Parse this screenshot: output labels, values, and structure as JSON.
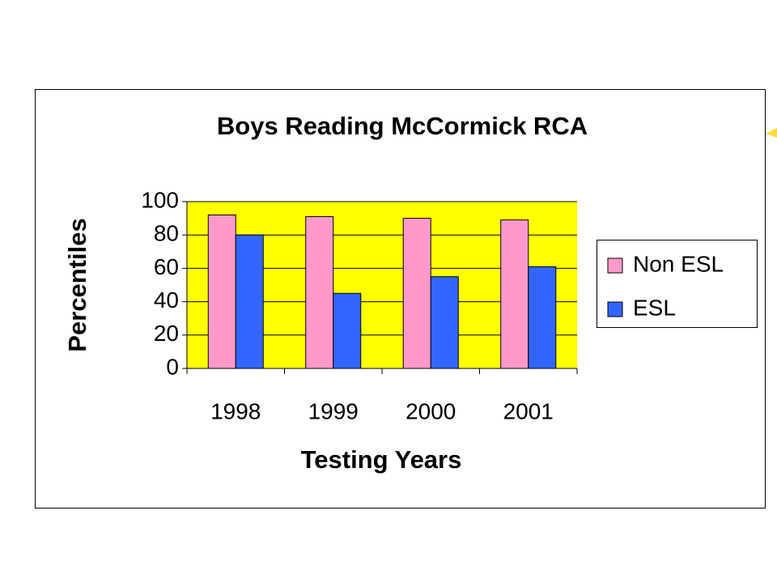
{
  "chart_data": {
    "type": "bar",
    "title": "Boys Reading McCormick RCA",
    "x_label": "Testing Years",
    "y_label": "Percentiles",
    "categories": [
      "1998",
      "1999",
      "2000",
      "2001"
    ],
    "series": [
      {
        "name": "Non ESL",
        "color": "#ff99cc",
        "values": [
          92,
          91,
          90,
          89
        ]
      },
      {
        "name": "ESL",
        "color": "#3366ff",
        "values": [
          80,
          45,
          55,
          61
        ]
      }
    ],
    "ylim": [
      0,
      100
    ],
    "yticks": [
      0,
      20,
      40,
      60,
      80,
      100
    ],
    "grid": true,
    "plot_background": "#ffff00",
    "legend": "right"
  }
}
